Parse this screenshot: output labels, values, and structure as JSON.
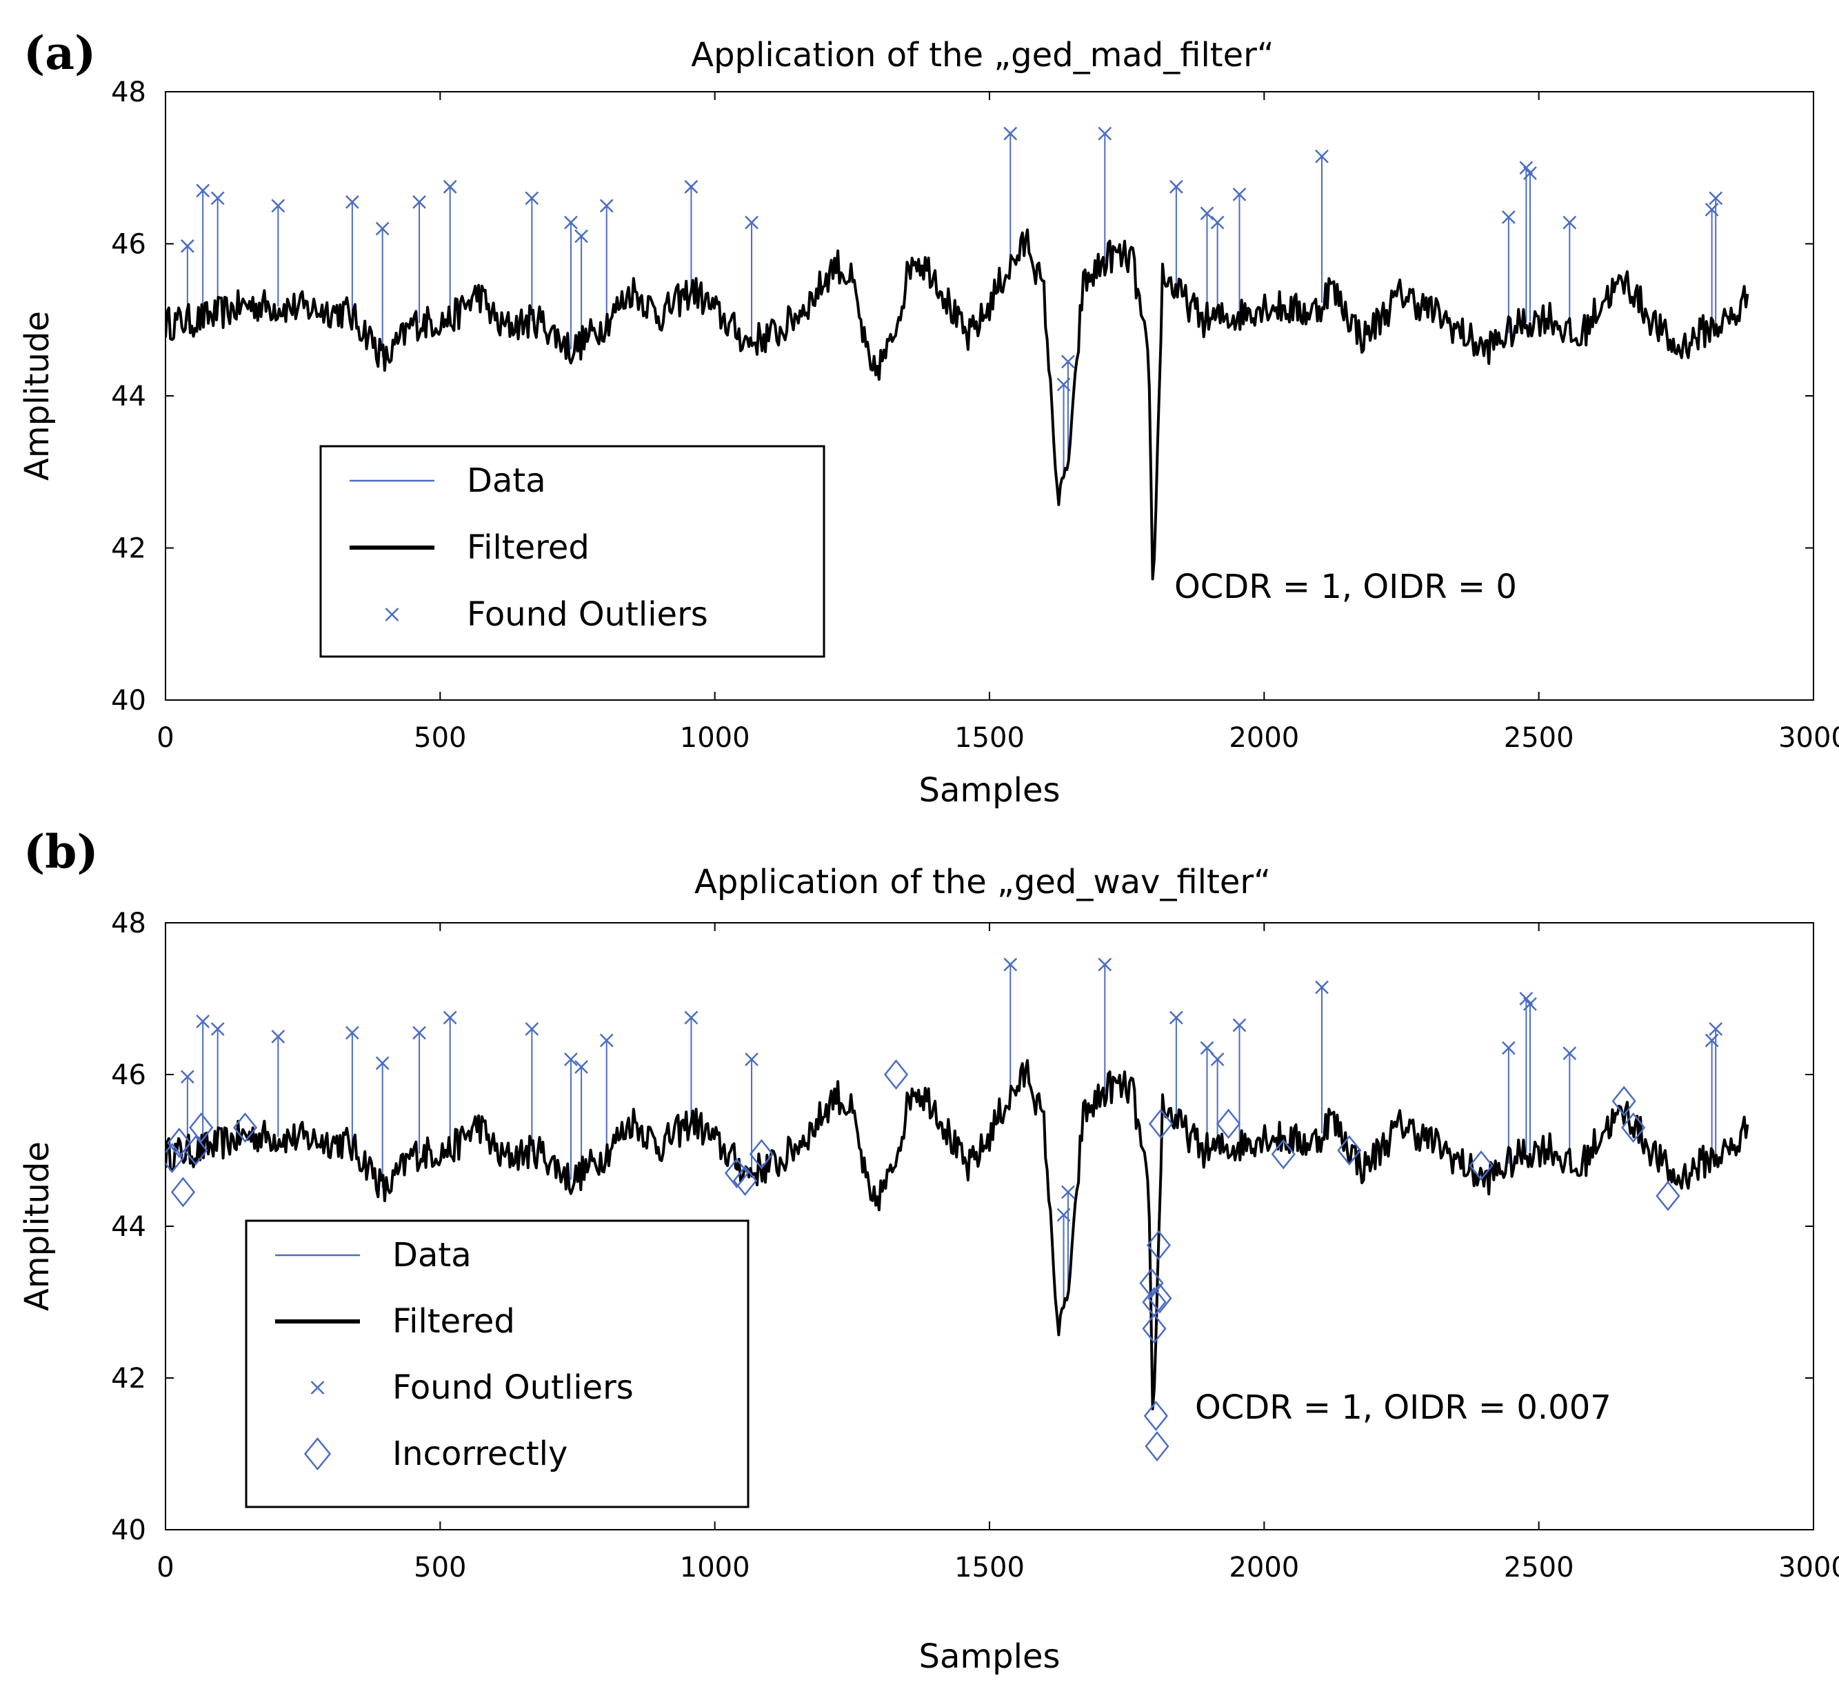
{
  "figure_colors": {
    "data": "#4a6cc4",
    "filtered": "#000000",
    "markers": "#4a6cc4"
  },
  "chart_data": [
    {
      "panel_label": "(a)",
      "type": "line",
      "title": "Application of the „ged_mad_filter“",
      "xlabel": "Samples",
      "ylabel": "Amplitude",
      "xlim": [
        0,
        3000
      ],
      "ylim": [
        40,
        48
      ],
      "xticks": [
        0,
        500,
        1000,
        1500,
        2000,
        2500,
        3000
      ],
      "yticks": [
        40,
        42,
        44,
        46,
        48
      ],
      "legend_position": "lower-left",
      "legend": [
        "Data",
        "Filtered",
        "Found Outliers"
      ],
      "annotation": "OCDR = 1, OIDR = 0",
      "outliers": [
        [
          40,
          45.97
        ],
        [
          68,
          46.7
        ],
        [
          95,
          46.6
        ],
        [
          205,
          46.5
        ],
        [
          340,
          46.55
        ],
        [
          395,
          46.2
        ],
        [
          462,
          46.55
        ],
        [
          518,
          46.75
        ],
        [
          667,
          46.6
        ],
        [
          738,
          46.28
        ],
        [
          757,
          46.1
        ],
        [
          803,
          46.5
        ],
        [
          957,
          46.75
        ],
        [
          1067,
          46.28
        ],
        [
          1538,
          47.45
        ],
        [
          1635,
          44.15
        ],
        [
          1643,
          44.45
        ],
        [
          1710,
          47.45
        ],
        [
          1840,
          46.75
        ],
        [
          1896,
          46.4
        ],
        [
          1915,
          46.28
        ],
        [
          1955,
          46.65
        ],
        [
          2105,
          47.15
        ],
        [
          2445,
          46.35
        ],
        [
          2477,
          47.0
        ],
        [
          2484,
          46.93
        ],
        [
          2556,
          46.28
        ],
        [
          2815,
          46.45
        ],
        [
          2822,
          46.6
        ]
      ],
      "incorrect": []
    },
    {
      "panel_label": "(b)",
      "type": "line",
      "title": "Application of the „ged_wav_filter“",
      "xlabel": "Samples",
      "ylabel": "Amplitude",
      "xlim": [
        0,
        3000
      ],
      "ylim": [
        40,
        48
      ],
      "xticks": [
        0,
        500,
        1000,
        1500,
        2000,
        2500,
        3000
      ],
      "yticks": [
        40,
        42,
        44,
        46,
        48
      ],
      "legend_position": "lower-left",
      "legend": [
        "Data",
        "Filtered",
        "Found Outliers",
        "Incorrectly"
      ],
      "annotation": "OCDR = 1, OIDR = 0.007",
      "outliers": [
        [
          40,
          45.97
        ],
        [
          68,
          46.7
        ],
        [
          95,
          46.6
        ],
        [
          205,
          46.5
        ],
        [
          340,
          46.55
        ],
        [
          395,
          46.15
        ],
        [
          462,
          46.55
        ],
        [
          518,
          46.75
        ],
        [
          667,
          46.6
        ],
        [
          738,
          46.2
        ],
        [
          757,
          46.1
        ],
        [
          803,
          46.45
        ],
        [
          957,
          46.75
        ],
        [
          1067,
          46.2
        ],
        [
          1538,
          47.45
        ],
        [
          1635,
          44.15
        ],
        [
          1643,
          44.45
        ],
        [
          1710,
          47.45
        ],
        [
          1840,
          46.75
        ],
        [
          1896,
          46.35
        ],
        [
          1915,
          46.2
        ],
        [
          1955,
          46.65
        ],
        [
          2105,
          47.15
        ],
        [
          2445,
          46.35
        ],
        [
          2477,
          47.0
        ],
        [
          2484,
          46.93
        ],
        [
          2556,
          46.28
        ],
        [
          2815,
          46.45
        ],
        [
          2822,
          46.6
        ]
      ],
      "incorrect": [
        [
          12,
          44.9
        ],
        [
          25,
          45.1
        ],
        [
          32,
          44.45
        ],
        [
          55,
          45.0
        ],
        [
          65,
          45.3
        ],
        [
          145,
          45.3
        ],
        [
          1040,
          44.7
        ],
        [
          1055,
          44.6
        ],
        [
          1085,
          44.95
        ],
        [
          1330,
          46.0
        ],
        [
          1795,
          43.25
        ],
        [
          1800,
          43.0
        ],
        [
          1800,
          42.65
        ],
        [
          1803,
          41.5
        ],
        [
          1805,
          41.1
        ],
        [
          1808,
          43.75
        ],
        [
          1810,
          43.05
        ],
        [
          1812,
          45.35
        ],
        [
          1935,
          45.35
        ],
        [
          2035,
          44.95
        ],
        [
          2155,
          45.0
        ],
        [
          2395,
          44.8
        ],
        [
          2655,
          45.65
        ],
        [
          2672,
          45.3
        ],
        [
          2735,
          44.4
        ]
      ]
    }
  ]
}
